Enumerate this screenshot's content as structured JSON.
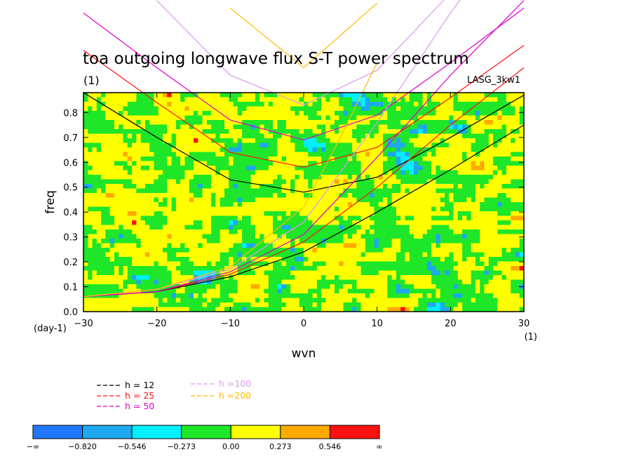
{
  "chart_data": {
    "type": "heatmap",
    "title": "toa outgoing longwave flux S-T power spectrum",
    "subtitle_left": "(1)",
    "subtitle_right": "LASG_3kw1",
    "xlabel": "wvn",
    "ylabel": "freq",
    "x_unit": "(1)",
    "y_unit": "(day-1)",
    "xlim": [
      -30,
      30
    ],
    "ylim": [
      0,
      0.88
    ],
    "x_ticks": [
      -30,
      -20,
      -10,
      0,
      10,
      20,
      30
    ],
    "y_ticks": [
      0.0,
      0.1,
      0.2,
      0.3,
      0.4,
      0.5,
      0.6,
      0.7,
      0.8
    ],
    "x_tick_labels": [
      "−30",
      "−20",
      "−10",
      "0",
      "10",
      "20",
      "30"
    ],
    "y_tick_labels": [
      "0.0",
      "0.1",
      "0.2",
      "0.3",
      "0.4",
      "0.5",
      "0.6",
      "0.7",
      "0.8"
    ],
    "colorbar": {
      "labels": [
        "−∞",
        "−0.820",
        "−0.546",
        "−0.273",
        "0.00",
        "0.273",
        "0.546",
        "∞"
      ],
      "colors": [
        "#1f78ff",
        "#1ea8f0",
        "#00f0ff",
        "#1ee628",
        "#ffff00",
        "#ffaa00",
        "#ff1111"
      ]
    },
    "field_value_range": [
      -0.82,
      0.82
    ],
    "dispersion_legend": [
      {
        "label": "h = 12",
        "color": "#000000"
      },
      {
        "label": "h = 25",
        "color": "#ff1111"
      },
      {
        "label": "h = 50",
        "color": "#dd00cc"
      },
      {
        "label": "h =100",
        "color": "#dd99ee"
      },
      {
        "label": "h =200",
        "color": "#ffbb00"
      }
    ],
    "dispersion_curves": [
      {
        "h": 12,
        "color": "#000000",
        "kelvin_points": [
          [
            -30,
            0.06
          ],
          [
            -20,
            0.08
          ],
          [
            -10,
            0.14
          ],
          [
            0,
            0.24
          ],
          [
            10,
            0.4
          ],
          [
            20,
            0.57
          ],
          [
            30,
            0.75
          ]
        ],
        "gravity_points": [
          [
            -30,
            0.88
          ],
          [
            -20,
            0.7
          ],
          [
            -10,
            0.53
          ],
          [
            0,
            0.48
          ],
          [
            10,
            0.54
          ],
          [
            20,
            0.7
          ],
          [
            30,
            0.87
          ]
        ]
      },
      {
        "h": 25,
        "color": "#ff1111",
        "kelvin_points": [
          [
            -30,
            0.06
          ],
          [
            -20,
            0.08
          ],
          [
            -10,
            0.15
          ],
          [
            0,
            0.28
          ],
          [
            10,
            0.5
          ],
          [
            20,
            0.75
          ],
          [
            30,
            0.98
          ]
        ],
        "gravity_points": [
          [
            -30,
            1.05
          ],
          [
            -20,
            0.84
          ],
          [
            -10,
            0.64
          ],
          [
            0,
            0.58
          ],
          [
            10,
            0.66
          ],
          [
            20,
            0.86
          ],
          [
            30,
            1.07
          ]
        ]
      },
      {
        "h": 50,
        "color": "#dd00cc",
        "kelvin_points": [
          [
            -30,
            0.06
          ],
          [
            -20,
            0.08
          ],
          [
            -10,
            0.16
          ],
          [
            0,
            0.31
          ],
          [
            10,
            0.62
          ],
          [
            20,
            0.95
          ],
          [
            30,
            1.25
          ]
        ],
        "gravity_points": [
          [
            -30,
            1.2
          ],
          [
            -20,
            0.98
          ],
          [
            -10,
            0.77
          ],
          [
            0,
            0.69
          ],
          [
            10,
            0.79
          ],
          [
            20,
            1.0
          ],
          [
            30,
            1.22
          ]
        ]
      },
      {
        "h": 100,
        "color": "#dd99ee",
        "kelvin_points": [
          [
            -30,
            0.06
          ],
          [
            -20,
            0.09
          ],
          [
            -10,
            0.17
          ],
          [
            0,
            0.36
          ],
          [
            10,
            0.76
          ],
          [
            20,
            1.2
          ],
          [
            30,
            1.6
          ]
        ],
        "gravity_points": [
          [
            -20,
            1.25
          ],
          [
            -10,
            0.95
          ],
          [
            0,
            0.83
          ],
          [
            10,
            0.97
          ],
          [
            20,
            1.28
          ]
        ]
      },
      {
        "h": 200,
        "color": "#ffbb00",
        "kelvin_points": [
          [
            -30,
            0.06
          ],
          [
            -20,
            0.09
          ],
          [
            -10,
            0.18
          ],
          [
            0,
            0.42
          ],
          [
            5,
            0.7
          ],
          [
            10,
            1.0
          ]
        ],
        "gravity_points": [
          [
            -10,
            1.22
          ],
          [
            0,
            0.98
          ],
          [
            10,
            1.24
          ]
        ]
      }
    ]
  }
}
